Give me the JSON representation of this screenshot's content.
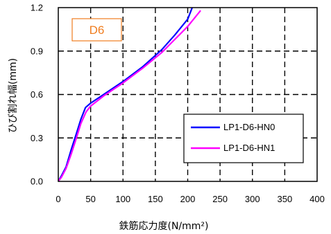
{
  "chart_data": {
    "type": "line",
    "badge": {
      "text": "D6",
      "color": "#f07d1f"
    },
    "xlabel": "鉄筋応力度(N/mm²)",
    "ylabel": "ひび割れ幅(mm)",
    "xlim": [
      0,
      400
    ],
    "ylim": [
      0,
      1.2
    ],
    "xticks": [
      0,
      50,
      100,
      150,
      200,
      250,
      300,
      350,
      400
    ],
    "yticks": [
      0.0,
      0.3,
      0.6,
      0.9,
      1.2
    ],
    "xtick_labels": [
      "0",
      "50",
      "100",
      "150",
      "200",
      "250",
      "300",
      "350",
      "400"
    ],
    "ytick_labels": [
      "0.0",
      "0.3",
      "0.6",
      "0.9",
      "1.2"
    ],
    "grid": true,
    "legend_position": "lower-right",
    "series": [
      {
        "name": "LP1-D6-HN0",
        "color": "#0000ff",
        "x": [
          0,
          5,
          12,
          20,
          28,
          35,
          42,
          50,
          70,
          100,
          130,
          160,
          180,
          200,
          207
        ],
        "y": [
          0.0,
          0.04,
          0.1,
          0.22,
          0.33,
          0.43,
          0.51,
          0.54,
          0.6,
          0.69,
          0.79,
          0.91,
          1.01,
          1.12,
          1.2
        ]
      },
      {
        "name": "LP1-D6-HN1",
        "color": "#ff00ff",
        "x": [
          0,
          5,
          12,
          20,
          28,
          35,
          43,
          50,
          70,
          100,
          130,
          160,
          180,
          200,
          220
        ],
        "y": [
          0.0,
          0.03,
          0.09,
          0.19,
          0.3,
          0.4,
          0.48,
          0.52,
          0.59,
          0.68,
          0.78,
          0.89,
          0.98,
          1.07,
          1.18
        ]
      }
    ]
  }
}
